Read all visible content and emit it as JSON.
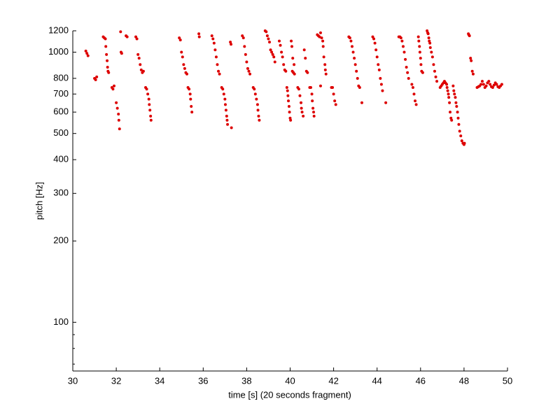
{
  "chart_data": {
    "type": "scatter",
    "xlabel": "time [s] (20 seconds fragment)",
    "ylabel": "pitch [Hz]",
    "color": "#dd0000",
    "log_y": true,
    "xlim": [
      30,
      50
    ],
    "xticks": [
      30,
      32,
      34,
      36,
      38,
      40,
      42,
      44,
      46,
      48,
      50
    ],
    "ylim": [
      66,
      1200
    ],
    "yticks": [
      100,
      200,
      300,
      400,
      500,
      600,
      700,
      800,
      1000,
      1200
    ],
    "yminorticks": [
      70,
      80,
      90
    ],
    "x": [
      30.6,
      30.65,
      30.7,
      31.0,
      31.05,
      31.1,
      31.4,
      31.45,
      31.5,
      31.52,
      31.55,
      31.58,
      31.6,
      31.62,
      31.65,
      31.8,
      31.85,
      31.9,
      32.0,
      32.05,
      32.1,
      32.12,
      32.15,
      32.2,
      32.22,
      32.25,
      32.45,
      32.5,
      32.9,
      32.95,
      33.0,
      33.05,
      33.1,
      33.15,
      33.2,
      33.25,
      33.35,
      33.4,
      33.45,
      33.5,
      33.52,
      33.55,
      33.58,
      33.6,
      34.9,
      34.95,
      35.0,
      35.05,
      35.1,
      35.15,
      35.2,
      35.25,
      35.3,
      35.35,
      35.4,
      35.42,
      35.45,
      35.48,
      35.8,
      35.82,
      36.4,
      36.45,
      36.5,
      36.55,
      36.6,
      36.65,
      36.7,
      36.75,
      36.85,
      36.9,
      36.95,
      37.0,
      37.02,
      37.05,
      37.08,
      37.1,
      37.12,
      37.25,
      37.28,
      37.3,
      37.8,
      37.85,
      37.9,
      37.95,
      38.0,
      38.05,
      38.1,
      38.15,
      38.3,
      38.35,
      38.4,
      38.45,
      38.5,
      38.52,
      38.55,
      38.58,
      38.85,
      38.9,
      38.95,
      39.0,
      39.05,
      39.1,
      39.15,
      39.2,
      39.25,
      39.3,
      39.5,
      39.55,
      39.6,
      39.65,
      39.7,
      39.75,
      39.8,
      39.85,
      39.88,
      39.9,
      39.92,
      39.95,
      39.97,
      40.0,
      40.02,
      40.1,
      40.15,
      40.2,
      40.05,
      40.08,
      40.12,
      40.18,
      40.35,
      40.4,
      40.45,
      40.5,
      40.52,
      40.55,
      40.6,
      40.65,
      40.7,
      40.75,
      40.8,
      40.9,
      40.95,
      41.0,
      41.02,
      41.05,
      41.08,
      41.1,
      41.25,
      41.3,
      41.35,
      41.4,
      41.45,
      41.5,
      41.52,
      41.55,
      41.6,
      41.62,
      41.65,
      41.4,
      41.9,
      41.95,
      42.0,
      42.05,
      42.1,
      42.7,
      42.75,
      42.8,
      42.85,
      42.9,
      42.95,
      43.0,
      43.05,
      43.1,
      43.15,
      43.2,
      43.3,
      43.8,
      43.85,
      43.9,
      43.95,
      44.0,
      44.05,
      44.1,
      44.15,
      44.2,
      44.25,
      44.4,
      45.0,
      45.05,
      45.1,
      45.15,
      45.2,
      45.25,
      45.3,
      45.35,
      45.4,
      45.45,
      45.6,
      45.65,
      45.7,
      45.75,
      45.8,
      45.9,
      45.92,
      45.95,
      45.97,
      46.0,
      46.02,
      46.05,
      46.1,
      46.3,
      46.33,
      46.35,
      46.38,
      46.4,
      46.43,
      46.45,
      46.5,
      46.55,
      46.6,
      46.65,
      46.7,
      46.75,
      46.9,
      46.95,
      47.0,
      47.05,
      47.1,
      47.15,
      47.2,
      47.22,
      47.25,
      47.28,
      47.3,
      47.33,
      47.36,
      47.4,
      47.43,
      47.5,
      47.53,
      47.56,
      47.6,
      47.63,
      47.66,
      47.7,
      47.73,
      47.76,
      47.8,
      47.85,
      47.9,
      47.95,
      48.0,
      48.02,
      48.2,
      48.22,
      48.25,
      48.3,
      48.33,
      48.38,
      48.42,
      48.6,
      48.66,
      48.72,
      48.78,
      48.84,
      48.9,
      48.96,
      49.02,
      49.08,
      49.14,
      49.2,
      49.26,
      49.32,
      49.38,
      49.44,
      49.5,
      49.56,
      49.62,
      49.68,
      49.74
    ],
    "values": [
      1010,
      990,
      970,
      800,
      790,
      810,
      1140,
      1130,
      1120,
      1050,
      980,
      930,
      880,
      850,
      840,
      740,
      730,
      750,
      650,
      620,
      590,
      560,
      520,
      1190,
      1000,
      990,
      1150,
      1140,
      1140,
      1120,
      980,
      950,
      900,
      860,
      840,
      850,
      740,
      730,
      700,
      670,
      640,
      610,
      580,
      560,
      1130,
      1110,
      1000,
      960,
      900,
      870,
      840,
      830,
      740,
      730,
      700,
      670,
      630,
      600,
      1170,
      1140,
      1150,
      1120,
      1080,
      1020,
      960,
      900,
      850,
      830,
      740,
      730,
      700,
      670,
      640,
      610,
      580,
      560,
      540,
      1090,
      1070,
      525,
      1150,
      1130,
      1050,
      980,
      920,
      870,
      850,
      830,
      740,
      730,
      700,
      670,
      640,
      610,
      580,
      560,
      1200,
      1190,
      1150,
      1120,
      1090,
      1020,
      1000,
      980,
      960,
      920,
      1100,
      1060,
      1000,
      960,
      900,
      860,
      850,
      740,
      720,
      690,
      660,
      630,
      600,
      570,
      560,
      850,
      840,
      830,
      1100,
      1050,
      950,
      900,
      740,
      730,
      690,
      650,
      620,
      600,
      580,
      1020,
      950,
      850,
      840,
      740,
      740,
      700,
      660,
      620,
      600,
      580,
      1160,
      1150,
      1140,
      1180,
      1130,
      1100,
      1050,
      960,
      900,
      860,
      830,
      750,
      740,
      740,
      700,
      660,
      640,
      1140,
      1130,
      1100,
      1050,
      1000,
      950,
      900,
      850,
      800,
      750,
      740,
      650,
      1140,
      1120,
      1080,
      1020,
      960,
      900,
      860,
      800,
      760,
      720,
      650,
      1140,
      1140,
      1130,
      1100,
      1050,
      1000,
      940,
      880,
      840,
      800,
      760,
      740,
      700,
      660,
      640,
      1140,
      1100,
      1050,
      1000,
      950,
      900,
      850,
      840,
      1200,
      1180,
      1170,
      1130,
      1100,
      1080,
      1040,
      1000,
      960,
      900,
      850,
      810,
      780,
      740,
      750,
      760,
      770,
      780,
      770,
      760,
      740,
      720,
      700,
      680,
      650,
      600,
      570,
      560,
      750,
      720,
      700,
      680,
      650,
      630,
      600,
      570,
      540,
      510,
      490,
      470,
      460,
      455,
      460,
      1170,
      1160,
      1150,
      950,
      930,
      850,
      830,
      740,
      745,
      750,
      760,
      780,
      760,
      740,
      750,
      770,
      780,
      760,
      745,
      740,
      755,
      770,
      760,
      745,
      740,
      750,
      760
    ]
  }
}
